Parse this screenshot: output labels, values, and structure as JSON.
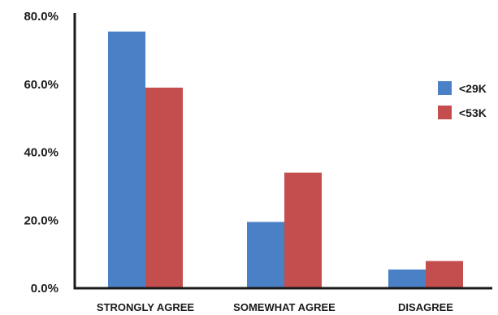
{
  "chart_data": {
    "type": "bar",
    "categories": [
      "STRONGLY AGREE",
      "SOMEWHAT AGREE",
      "DISAGREE"
    ],
    "series": [
      {
        "name": "<29K",
        "color": "#4a80c5",
        "values": [
          75.5,
          19.5,
          5.5
        ]
      },
      {
        "name": "<53K",
        "color": "#c44e4e",
        "values": [
          59.0,
          34.0,
          8.0
        ]
      }
    ],
    "y_ticks": [
      "0.0%",
      "20.0%",
      "40.0%",
      "60.0%",
      "80.0%"
    ],
    "ylim": [
      0,
      80
    ],
    "grid": false,
    "legend_position": "right"
  }
}
